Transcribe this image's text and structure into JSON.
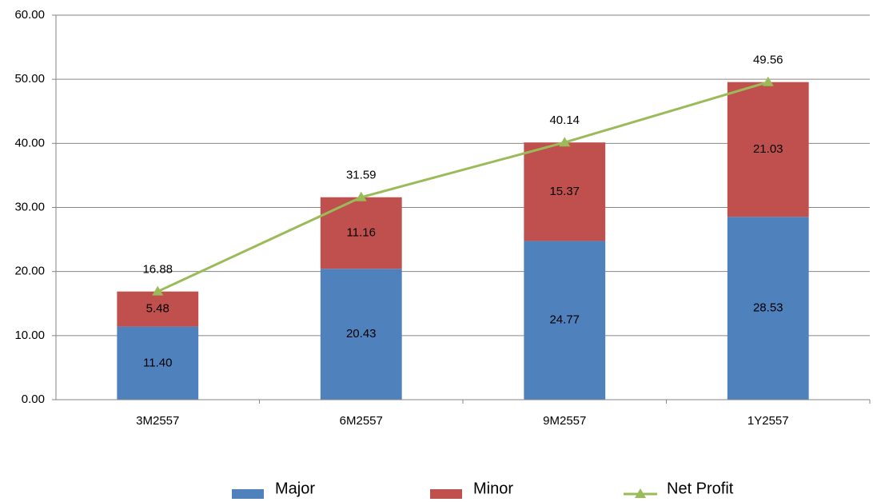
{
  "chart_data": {
    "type": "bar",
    "stacked": true,
    "categories": [
      "3M2557",
      "6M2557",
      "9M2557",
      "1Y2557"
    ],
    "series": [
      {
        "name": "Major",
        "type": "bar",
        "color": "#4f81bd",
        "values": [
          11.4,
          20.43,
          24.77,
          28.53
        ],
        "value_labels": [
          "11.40",
          "20.43",
          "24.77",
          "28.53"
        ]
      },
      {
        "name": "Minor",
        "type": "bar",
        "color": "#c0504d",
        "values": [
          5.48,
          11.16,
          15.37,
          21.03
        ],
        "value_labels": [
          "5.48",
          "11.16",
          "15.37",
          "21.03"
        ]
      },
      {
        "name": "Net Profit",
        "type": "line",
        "color": "#9bbb59",
        "values": [
          16.88,
          31.59,
          40.14,
          49.56
        ],
        "value_labels": [
          "16.88",
          "31.59",
          "40.14",
          "49.56"
        ]
      }
    ],
    "ylim": [
      0,
      60
    ],
    "yticks": [
      {
        "value": 0,
        "label": "0.00"
      },
      {
        "value": 10,
        "label": "10.00"
      },
      {
        "value": 20,
        "label": "20.00"
      },
      {
        "value": 30,
        "label": "30.00"
      },
      {
        "value": 40,
        "label": "40.00"
      },
      {
        "value": 50,
        "label": "50.00"
      },
      {
        "value": 60,
        "label": "60.00"
      }
    ],
    "grid": true,
    "legend": "bottom"
  }
}
